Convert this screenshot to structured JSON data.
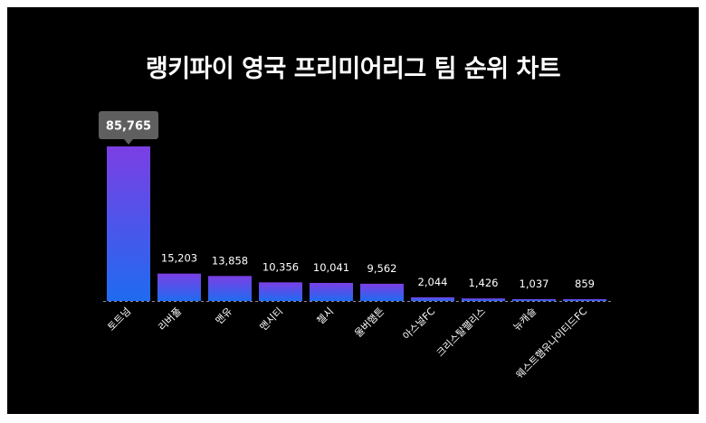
{
  "title": "랭키파이 영국 프리미어리그 팀 순위 차트",
  "colors": {
    "background": "#000000",
    "bar_top": "#7b3fe4",
    "bar_bottom": "#1f6bf0",
    "tooltip": "#5f5f5f",
    "text": "#ffffff"
  },
  "chart_data": {
    "type": "bar",
    "title": "랭키파이 영국 프리미어리그 팀 순위 차트",
    "categories": [
      "토트넘",
      "리버풀",
      "맨유",
      "맨시티",
      "첼시",
      "울버햄튼",
      "아스널FC",
      "크리스탈팰리스",
      "뉴캐슬",
      "웨스트햄유나이티드FC"
    ],
    "values": [
      85765,
      15203,
      13858,
      10356,
      10041,
      9562,
      2044,
      1426,
      1037,
      859
    ],
    "value_labels": [
      "85,765",
      "15,203",
      "13,858",
      "10,356",
      "10,041",
      "9,562",
      "2,044",
      "1,426",
      "1,037",
      "859"
    ],
    "highlight_index": 0,
    "xlabel": "",
    "ylabel": "",
    "grid": false,
    "legend": "none"
  }
}
